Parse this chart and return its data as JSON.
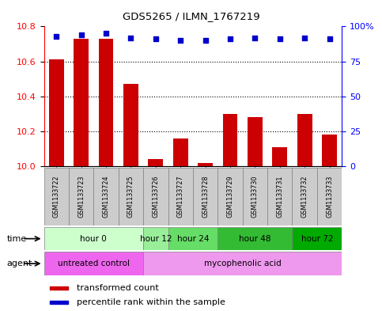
{
  "title": "GDS5265 / ILMN_1767219",
  "samples": [
    "GSM1133722",
    "GSM1133723",
    "GSM1133724",
    "GSM1133725",
    "GSM1133726",
    "GSM1133727",
    "GSM1133728",
    "GSM1133729",
    "GSM1133730",
    "GSM1133731",
    "GSM1133732",
    "GSM1133733"
  ],
  "bar_values": [
    10.61,
    10.73,
    10.73,
    10.47,
    10.04,
    10.16,
    10.02,
    10.3,
    10.28,
    10.11,
    10.3,
    10.18
  ],
  "percentile_values": [
    93,
    94,
    95,
    92,
    91,
    90,
    90,
    91,
    92,
    91,
    92,
    91
  ],
  "ylim_left": [
    10.0,
    10.8
  ],
  "ylim_right": [
    0,
    100
  ],
  "yticks_left": [
    10.0,
    10.2,
    10.4,
    10.6,
    10.8
  ],
  "yticks_right": [
    0,
    25,
    50,
    75,
    100
  ],
  "bar_color": "#cc0000",
  "dot_color": "#0000cc",
  "time_group_data": [
    {
      "label": "hour 0",
      "indices": [
        0,
        1,
        2,
        3
      ],
      "color": "#ccffcc"
    },
    {
      "label": "hour 12",
      "indices": [
        4
      ],
      "color": "#99ee99"
    },
    {
      "label": "hour 24",
      "indices": [
        5,
        6
      ],
      "color": "#66dd66"
    },
    {
      "label": "hour 48",
      "indices": [
        7,
        8,
        9
      ],
      "color": "#33bb33"
    },
    {
      "label": "hour 72",
      "indices": [
        10,
        11
      ],
      "color": "#00aa00"
    }
  ],
  "agent_group_data": [
    {
      "label": "untreated control",
      "indices": [
        0,
        1,
        2,
        3
      ],
      "color": "#ee66ee"
    },
    {
      "label": "mycophenolic acid",
      "indices": [
        4,
        5,
        6,
        7,
        8,
        9,
        10,
        11
      ],
      "color": "#ee99ee"
    }
  ],
  "time_label": "time",
  "agent_label": "agent",
  "legend_bar_label": "transformed count",
  "legend_dot_label": "percentile rank within the sample",
  "sample_box_color": "#cccccc",
  "plot_bg_color": "#ffffff"
}
